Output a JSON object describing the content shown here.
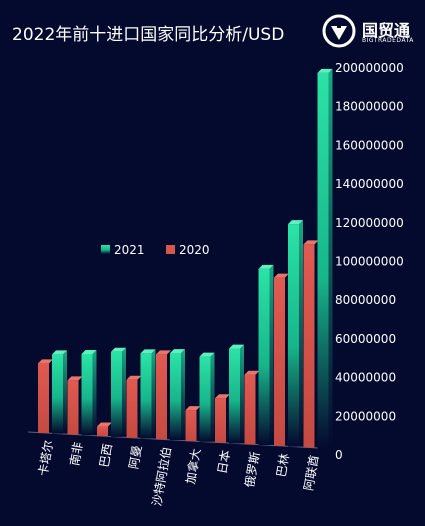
{
  "header": {
    "title": "2022年前十进口国家同比分析/USD",
    "brand_name": "国贸通",
    "brand_sub": "BIGTRADEDATA"
  },
  "colors": {
    "background": "#04092e",
    "series_2021_top": "#2be3a6",
    "series_2021_bottom": "#04092e",
    "series_2020": "#d4564c"
  },
  "chart_data": {
    "type": "bar",
    "title": "2022年前十进口国家同比分析/USD",
    "categories": [
      "卡塔尔",
      "南非",
      "巴西",
      "阿曼",
      "沙特阿拉伯",
      "加拿大",
      "日本",
      "俄罗斯",
      "巴林",
      "阿联酋"
    ],
    "series": [
      {
        "name": "2021",
        "values": [
          41000000,
          42000000,
          44000000,
          44000000,
          45000000,
          44000000,
          49000000,
          91000000,
          115000000,
          194000000
        ]
      },
      {
        "name": "2020",
        "values": [
          36000000,
          28000000,
          5000000,
          30000000,
          44000000,
          16000000,
          23000000,
          36000000,
          87000000,
          105000000
        ]
      }
    ],
    "ylim": [
      0,
      200000000
    ],
    "yticks": [
      "0",
      "20000000",
      "40000000",
      "60000000",
      "80000000",
      "100000000",
      "120000000",
      "140000000",
      "160000000",
      "180000000",
      "200000000"
    ],
    "grid": false,
    "legend_position": "center-left",
    "axis_position": "right"
  }
}
